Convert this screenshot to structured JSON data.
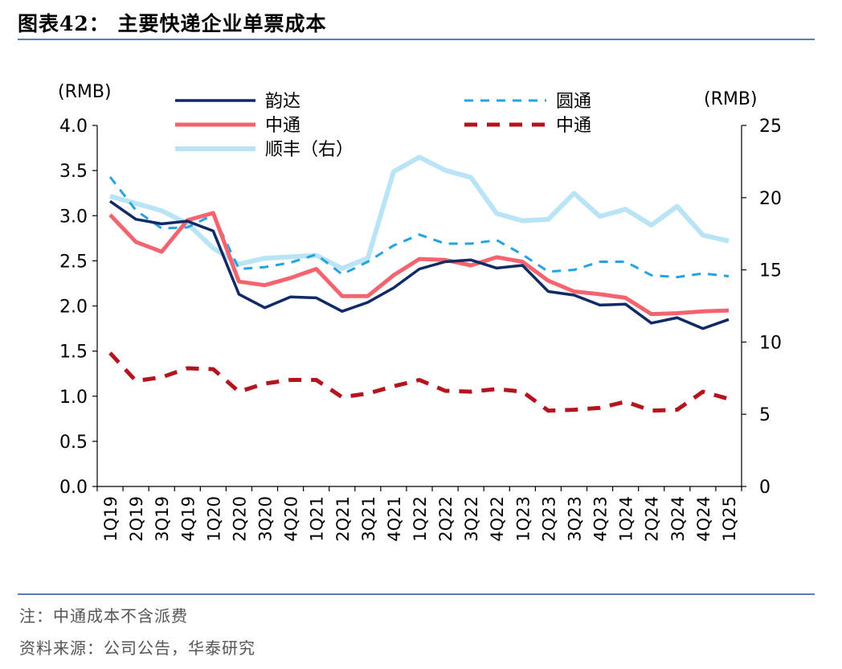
{
  "header": {
    "title": "图表42：  主要快递企业单票成本"
  },
  "footer": {
    "note": "注：中通成本不含派费",
    "source": "资料来源：公司公告，华泰研究"
  },
  "colors": {
    "rule": "#5b7cb5",
    "yunda": "#0f2a66",
    "yto": "#24a3e0",
    "zto": "#f4646e",
    "zto_dashed": "#b3141d",
    "sf": "#b8e4f5"
  },
  "chart_data": {
    "type": "line",
    "categories": [
      "1Q19",
      "2Q19",
      "3Q19",
      "4Q19",
      "1Q20",
      "2Q20",
      "3Q20",
      "4Q20",
      "1Q21",
      "2Q21",
      "3Q21",
      "4Q21",
      "1Q22",
      "2Q22",
      "3Q22",
      "4Q22",
      "1Q23",
      "2Q23",
      "3Q23",
      "4Q23",
      "1Q24",
      "2Q24",
      "3Q24",
      "4Q24",
      "1Q25"
    ],
    "ylabel_left": "(RMB)",
    "ylabel_right": "(RMB)",
    "ylim_left": [
      0,
      4
    ],
    "ylim_right": [
      0,
      25
    ],
    "yticks_left": [
      "0.0",
      "0.5",
      "1.0",
      "1.5",
      "2.0",
      "2.5",
      "3.0",
      "3.5",
      "4.0"
    ],
    "yticks_right": [
      "0",
      "5",
      "10",
      "15",
      "20",
      "25"
    ],
    "legend_position": "top",
    "series": [
      {
        "name": "韵达",
        "axis": "left",
        "style": "solid",
        "color": "#0f2a66",
        "width": 3.5,
        "values": [
          3.16,
          2.96,
          2.91,
          2.94,
          2.83,
          2.13,
          1.98,
          2.1,
          2.09,
          1.94,
          2.04,
          2.2,
          2.41,
          2.49,
          2.51,
          2.42,
          2.45,
          2.16,
          2.12,
          2.01,
          2.02,
          1.81,
          1.87,
          1.75,
          1.85
        ]
      },
      {
        "name": "圆通",
        "axis": "left",
        "style": "dashed",
        "color": "#24a3e0",
        "width": 3,
        "values": [
          3.43,
          3.06,
          2.86,
          2.87,
          3.01,
          2.41,
          2.43,
          2.48,
          2.57,
          2.35,
          2.49,
          2.67,
          2.79,
          2.69,
          2.69,
          2.73,
          2.57,
          2.38,
          2.4,
          2.49,
          2.49,
          2.34,
          2.32,
          2.36,
          2.33
        ]
      },
      {
        "name": "中通",
        "axis": "left",
        "style": "solid",
        "color": "#f4646e",
        "width": 5,
        "values": [
          3.01,
          2.71,
          2.6,
          2.95,
          3.03,
          2.27,
          2.23,
          2.31,
          2.41,
          2.11,
          2.11,
          2.34,
          2.52,
          2.51,
          2.45,
          2.54,
          2.49,
          2.28,
          2.16,
          2.13,
          2.09,
          1.91,
          1.92,
          1.94,
          1.95
        ]
      },
      {
        "name": "中通",
        "axis": "left",
        "style": "dashed",
        "color": "#b3141d",
        "width": 5,
        "values": [
          1.48,
          1.17,
          1.21,
          1.31,
          1.3,
          1.05,
          1.14,
          1.18,
          1.18,
          0.99,
          1.03,
          1.11,
          1.18,
          1.06,
          1.05,
          1.08,
          1.05,
          0.84,
          0.85,
          0.87,
          0.94,
          0.84,
          0.85,
          1.05,
          0.97
        ]
      },
      {
        "name": "顺丰（右）",
        "axis": "right",
        "style": "solid",
        "color": "#b8e4f5",
        "width": 6,
        "values": [
          20.1,
          19.6,
          19.1,
          18.2,
          16.5,
          15.4,
          15.8,
          15.9,
          16.0,
          15.1,
          15.8,
          21.8,
          22.8,
          21.9,
          21.4,
          18.9,
          18.4,
          18.5,
          20.3,
          18.7,
          19.2,
          18.1,
          19.4,
          17.4,
          17.0
        ]
      }
    ]
  }
}
